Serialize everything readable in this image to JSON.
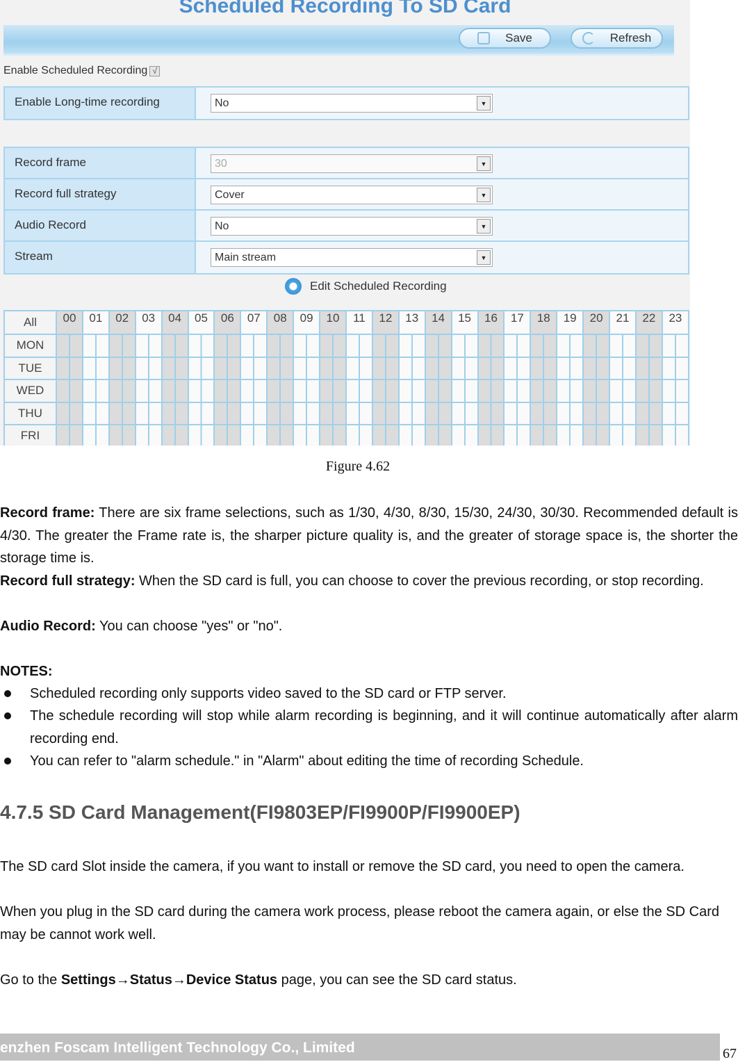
{
  "screenshot": {
    "title": "Scheduled Recording To SD Card",
    "save_label": "Save",
    "refresh_label": "Refresh",
    "enable_scheduled_label": "Enable Scheduled Recording",
    "enable_scheduled_checked": true,
    "check_mark": "√",
    "long_time": {
      "label": "Enable Long-time recording",
      "value": "No"
    },
    "fields": [
      {
        "label": "Record frame",
        "value": "30",
        "disabled": true
      },
      {
        "label": "Record full strategy",
        "value": "Cover"
      },
      {
        "label": "Audio Record",
        "value": "No"
      },
      {
        "label": "Stream",
        "value": "Main stream"
      }
    ],
    "edit_label": "Edit Scheduled Recording",
    "schedule": {
      "all_label": "All",
      "days": [
        "MON",
        "TUE",
        "WED",
        "THU",
        "FRI"
      ],
      "hours": [
        "00",
        "01",
        "02",
        "03",
        "04",
        "05",
        "06",
        "07",
        "08",
        "09",
        "10",
        "11",
        "12",
        "13",
        "14",
        "15",
        "16",
        "17",
        "18",
        "19",
        "20",
        "21",
        "22",
        "23"
      ]
    },
    "accent": "#4d8fce"
  },
  "caption": "Figure 4.62",
  "paragraphs": {
    "record_frame_term": "Record frame:",
    "record_frame_text": " There are six frame selections, such as 1/30, 4/30, 8/30, 15/30, 24/30, 30/30. Recommended default is 4/30. The greater the Frame rate is, the sharper picture quality is, and the greater of storage space is, the shorter the storage time is.",
    "strategy_term": "Record full strategy:",
    "strategy_text": " When the SD card is full, you can choose to cover the previous recording, or stop recording.",
    "audio_term": "Audio Record:",
    "audio_text": " You can choose \"yes\" or \"no\".",
    "notes_label": "NOTES:",
    "notes": [
      "Scheduled recording only supports video saved to the SD card or FTP server.",
      "The schedule recording will stop while alarm recording is beginning, and it will continue automatically after alarm recording end.",
      "You can refer to \"alarm schedule.\" in \"Alarm\" about editing the time of recording Schedule."
    ],
    "section_heading": "4.7.5 SD Card Management(FI9803EP/FI9900P/FI9900EP)",
    "sd1": "The SD card Slot inside the camera, if you want to install or remove the SD card, you need to open the camera.",
    "sd2": "When you plug in the SD card during the camera work process, please reboot the camera again, or else the SD Card may be cannot work well.",
    "goto_prefix": "Go to the ",
    "goto_path": "Settings→Status→Device Status",
    "goto_suffix": " page, you can see the SD card status."
  },
  "footer": {
    "company": "enzhen Foscam Intelligent Technology Co., Limited",
    "page_number": "67"
  }
}
